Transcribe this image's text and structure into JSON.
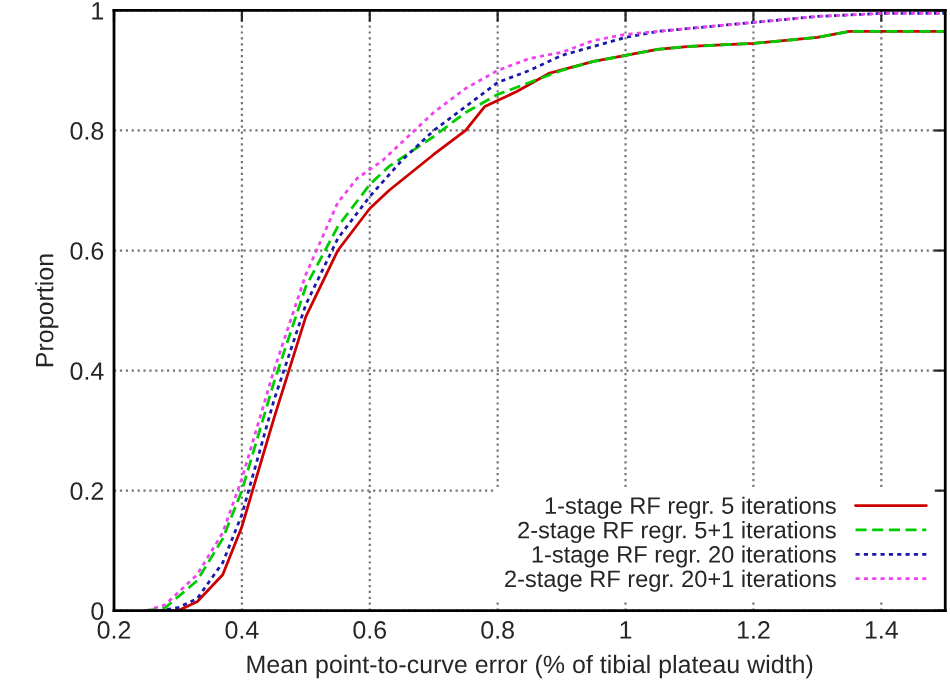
{
  "chart_data": {
    "type": "line",
    "xlabel": "Mean point-to-curve error (% of tibial plateau width)",
    "ylabel": "Proportion",
    "xlim": [
      0.2,
      1.5
    ],
    "ylim": [
      0,
      1
    ],
    "xticks": [
      0.2,
      0.4,
      0.6,
      0.8,
      1,
      1.2,
      1.4
    ],
    "yticks": [
      0,
      0.2,
      0.4,
      0.6,
      0.8,
      1
    ],
    "grid": true,
    "legend": "bottom right",
    "marker": "none",
    "series": [
      {
        "name": "1-stage RF regr. 5 iterations",
        "color": "#cc0000",
        "line_style": "solid",
        "x": [
          0.25,
          0.3,
          0.33,
          0.37,
          0.4,
          0.45,
          0.5,
          0.55,
          0.6,
          0.63,
          0.7,
          0.75,
          0.78,
          0.8,
          0.83,
          0.88,
          0.95,
          1.0,
          1.05,
          1.1,
          1.2,
          1.3,
          1.35,
          1.5
        ],
        "values": [
          0,
          0,
          0.015,
          0.06,
          0.14,
          0.32,
          0.49,
          0.6,
          0.67,
          0.7,
          0.76,
          0.8,
          0.84,
          0.85,
          0.865,
          0.895,
          0.915,
          0.925,
          0.935,
          0.94,
          0.945,
          0.955,
          0.965,
          0.965
        ]
      },
      {
        "name": "2-stage RF regr. 5+1 iterations",
        "color": "#00cc00",
        "line_style": "dashed",
        "x": [
          0.25,
          0.28,
          0.33,
          0.37,
          0.4,
          0.45,
          0.5,
          0.55,
          0.6,
          0.63,
          0.7,
          0.75,
          0.8,
          0.85,
          0.9,
          0.95,
          1.0,
          1.05,
          1.1,
          1.2,
          1.3,
          1.35,
          1.5
        ],
        "values": [
          0,
          0.005,
          0.05,
          0.12,
          0.2,
          0.38,
          0.54,
          0.64,
          0.71,
          0.74,
          0.79,
          0.83,
          0.86,
          0.88,
          0.9,
          0.915,
          0.925,
          0.935,
          0.94,
          0.945,
          0.955,
          0.965,
          0.965
        ]
      },
      {
        "name": "1-stage RF regr. 20 iterations",
        "color": "#1a1aaa",
        "line_style": "dotted",
        "x": [
          0.27,
          0.3,
          0.33,
          0.37,
          0.4,
          0.45,
          0.5,
          0.55,
          0.6,
          0.65,
          0.7,
          0.75,
          0.8,
          0.85,
          0.9,
          0.95,
          1.0,
          1.05,
          1.1,
          1.2,
          1.3,
          1.4,
          1.5
        ],
        "values": [
          0,
          0.005,
          0.02,
          0.08,
          0.16,
          0.35,
          0.51,
          0.62,
          0.69,
          0.75,
          0.8,
          0.84,
          0.88,
          0.9,
          0.925,
          0.94,
          0.955,
          0.965,
          0.97,
          0.98,
          0.99,
          0.995,
          0.995
        ]
      },
      {
        "name": "2-stage RF regr. 20+1 iterations",
        "color": "#ee44ee",
        "line_style": "dotted",
        "x": [
          0.25,
          0.28,
          0.33,
          0.37,
          0.4,
          0.45,
          0.5,
          0.55,
          0.58,
          0.62,
          0.7,
          0.75,
          0.8,
          0.85,
          0.9,
          0.95,
          1.0,
          1.1,
          1.2,
          1.3,
          1.4,
          1.5
        ],
        "values": [
          0,
          0.01,
          0.06,
          0.13,
          0.22,
          0.4,
          0.56,
          0.68,
          0.72,
          0.75,
          0.83,
          0.87,
          0.9,
          0.92,
          0.93,
          0.95,
          0.96,
          0.97,
          0.98,
          0.99,
          0.995,
          0.995
        ]
      }
    ]
  }
}
